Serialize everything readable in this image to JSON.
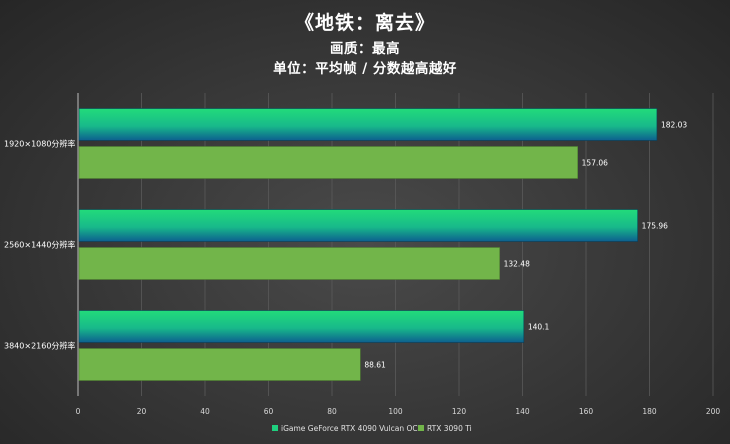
{
  "header": {
    "title": "《地铁：离去》",
    "quality": "画质：最高",
    "unit": "单位：平均帧 / 分数越高越好"
  },
  "chart_data": {
    "type": "bar",
    "orientation": "horizontal",
    "title": "《地铁：离去》",
    "subtitle": [
      "画质：最高",
      "单位：平均帧 / 分数越高越好"
    ],
    "categories": [
      "1920×1080分辨率",
      "2560×1440分辨率",
      "3840×2160分辨率"
    ],
    "series": [
      {
        "name": "iGame GeForce RTX 4090 Vulcan OC",
        "values": [
          182.03,
          175.96,
          140.1
        ],
        "color": "#1fd07f",
        "color_dark": "#0e6a8c"
      },
      {
        "name": "RTX 3090 Ti",
        "values": [
          157.06,
          132.48,
          88.61
        ],
        "color": "#72b54a"
      }
    ],
    "xlim": [
      0,
      200
    ],
    "xticks": [
      0,
      20,
      40,
      60,
      80,
      100,
      120,
      140,
      160,
      180,
      200
    ],
    "grid": true,
    "legend": "bottom"
  }
}
